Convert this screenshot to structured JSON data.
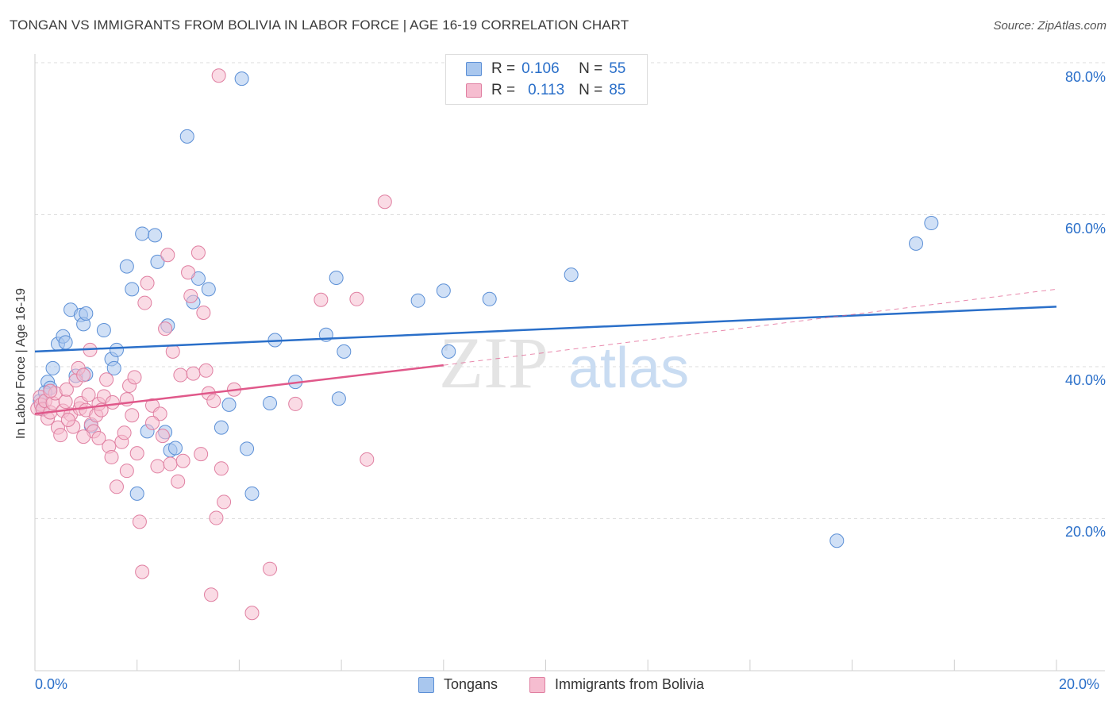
{
  "header": {
    "title": "TONGAN VS IMMIGRANTS FROM BOLIVIA IN LABOR FORCE | AGE 16-19 CORRELATION CHART",
    "source": "Source: ZipAtlas.com"
  },
  "legend": {
    "rows": [
      {
        "r_label": "R =",
        "r_value": "0.106",
        "n_label": "N =",
        "n_value": "55"
      },
      {
        "r_label": "R =",
        "r_value": "0.113",
        "n_label": "N =",
        "n_value": "85"
      }
    ]
  },
  "watermark": {
    "zip": "ZIP",
    "atlas": "atlas"
  },
  "colors": {
    "tongans_fill": "#a9c7ee",
    "tongans_stroke": "#5b8fd6",
    "tongans_line": "#2a6fc9",
    "bolivia_fill": "#f6bdd0",
    "bolivia_stroke": "#e07fa1",
    "bolivia_line": "#e0588a",
    "axis_text": "#2a6fc9",
    "grid": "#dddddd"
  },
  "chart_data": {
    "type": "scatter",
    "title": "TONGAN VS IMMIGRANTS FROM BOLIVIA IN LABOR FORCE | AGE 16-19 CORRELATION CHART",
    "xlabel": "",
    "ylabel": "In Labor Force | Age 16-19",
    "xlim": [
      0,
      20
    ],
    "ylim": [
      0,
      80
    ],
    "x_tick_labels": [
      "0.0%",
      "20.0%"
    ],
    "y_ticks": [
      20,
      40,
      60,
      80
    ],
    "y_tick_labels": [
      "20.0%",
      "40.0%",
      "60.0%",
      "80.0%"
    ],
    "grid": true,
    "legend_position": "bottom",
    "series": [
      {
        "name": "Tongans",
        "points": [
          [
            0.1,
            35.5
          ],
          [
            0.15,
            34.5
          ],
          [
            0.25,
            38
          ],
          [
            0.3,
            37.2
          ],
          [
            0.35,
            39.8
          ],
          [
            0.45,
            43
          ],
          [
            0.55,
            44
          ],
          [
            0.6,
            43.2
          ],
          [
            0.7,
            47.5
          ],
          [
            0.8,
            38.8
          ],
          [
            0.9,
            46.8
          ],
          [
            0.95,
            45.6
          ],
          [
            1.0,
            47
          ],
          [
            1.1,
            32.2
          ],
          [
            1.35,
            44.8
          ],
          [
            1.5,
            41
          ],
          [
            1.6,
            42.2
          ],
          [
            1.8,
            53.2
          ],
          [
            1.9,
            50.2
          ],
          [
            2.0,
            23.3
          ],
          [
            2.1,
            57.5
          ],
          [
            2.2,
            31.5
          ],
          [
            2.35,
            57.3
          ],
          [
            2.4,
            53.8
          ],
          [
            2.55,
            31.4
          ],
          [
            2.6,
            45.4
          ],
          [
            2.65,
            29
          ],
          [
            2.75,
            29.3
          ],
          [
            2.98,
            70.3
          ],
          [
            3.1,
            48.5
          ],
          [
            3.2,
            51.6
          ],
          [
            3.4,
            50.2
          ],
          [
            3.65,
            32
          ],
          [
            3.8,
            35
          ],
          [
            4.05,
            77.9
          ],
          [
            4.15,
            29.2
          ],
          [
            4.25,
            23.3
          ],
          [
            4.6,
            35.2
          ],
          [
            4.7,
            43.5
          ],
          [
            5.1,
            38
          ],
          [
            5.7,
            44.2
          ],
          [
            5.9,
            51.7
          ],
          [
            5.95,
            35.8
          ],
          [
            6.05,
            42
          ],
          [
            7.5,
            48.7
          ],
          [
            8.0,
            50
          ],
          [
            8.1,
            42
          ],
          [
            8.9,
            48.9
          ],
          [
            10.5,
            52.1
          ],
          [
            15.7,
            17.1
          ],
          [
            17.25,
            56.2
          ],
          [
            17.55,
            58.9
          ],
          [
            1.55,
            39.8
          ],
          [
            0.2,
            36.6
          ],
          [
            1.0,
            39
          ]
        ]
      },
      {
        "name": "Immigrants from Bolivia",
        "points": [
          [
            0.05,
            34.5
          ],
          [
            0.1,
            36
          ],
          [
            0.12,
            35
          ],
          [
            0.15,
            34.4
          ],
          [
            0.2,
            35.5
          ],
          [
            0.25,
            33.2
          ],
          [
            0.3,
            34
          ],
          [
            0.35,
            35.2
          ],
          [
            0.4,
            36.5
          ],
          [
            0.45,
            32
          ],
          [
            0.5,
            31
          ],
          [
            0.55,
            34.2
          ],
          [
            0.6,
            35.4
          ],
          [
            0.62,
            37
          ],
          [
            0.7,
            33.7
          ],
          [
            0.75,
            32.1
          ],
          [
            0.8,
            38.2
          ],
          [
            0.85,
            39.8
          ],
          [
            0.88,
            34.5
          ],
          [
            0.9,
            35.2
          ],
          [
            0.95,
            38.9
          ],
          [
            1.0,
            34.3
          ],
          [
            1.05,
            36.3
          ],
          [
            1.08,
            42.2
          ],
          [
            1.1,
            32.4
          ],
          [
            1.15,
            31.5
          ],
          [
            1.2,
            33.6
          ],
          [
            1.25,
            35.1
          ],
          [
            1.3,
            34.3
          ],
          [
            1.35,
            36.1
          ],
          [
            1.4,
            38.3
          ],
          [
            1.45,
            29.5
          ],
          [
            1.5,
            28.1
          ],
          [
            1.52,
            35.3
          ],
          [
            1.6,
            24.2
          ],
          [
            1.7,
            30.1
          ],
          [
            1.75,
            31.3
          ],
          [
            1.8,
            35.7
          ],
          [
            1.85,
            37.5
          ],
          [
            1.9,
            33.6
          ],
          [
            1.95,
            38.6
          ],
          [
            2.0,
            28.6
          ],
          [
            2.05,
            19.6
          ],
          [
            2.1,
            13
          ],
          [
            2.15,
            48.4
          ],
          [
            2.2,
            51
          ],
          [
            2.3,
            34.9
          ],
          [
            2.4,
            26.9
          ],
          [
            2.45,
            33.8
          ],
          [
            2.5,
            30.9
          ],
          [
            2.55,
            45
          ],
          [
            2.6,
            54.7
          ],
          [
            2.65,
            27.2
          ],
          [
            2.7,
            42
          ],
          [
            2.8,
            24.9
          ],
          [
            2.85,
            38.9
          ],
          [
            2.9,
            27.6
          ],
          [
            3.0,
            52.4
          ],
          [
            3.05,
            49.3
          ],
          [
            3.1,
            39.1
          ],
          [
            3.2,
            55
          ],
          [
            3.25,
            28.5
          ],
          [
            3.3,
            47.1
          ],
          [
            3.35,
            39.5
          ],
          [
            3.4,
            36.5
          ],
          [
            3.45,
            10
          ],
          [
            3.5,
            35.5
          ],
          [
            3.55,
            20.1
          ],
          [
            3.6,
            78.3
          ],
          [
            3.65,
            26.6
          ],
          [
            3.7,
            22.2
          ],
          [
            3.9,
            37
          ],
          [
            4.25,
            7.6
          ],
          [
            4.6,
            13.4
          ],
          [
            5.1,
            35.1
          ],
          [
            5.6,
            48.8
          ],
          [
            6.3,
            48.9
          ],
          [
            6.5,
            27.8
          ],
          [
            6.85,
            61.7
          ],
          [
            1.8,
            26.3
          ],
          [
            0.3,
            36.8
          ],
          [
            0.65,
            33
          ],
          [
            1.25,
            30.6
          ],
          [
            2.3,
            32.6
          ],
          [
            0.95,
            30.8
          ]
        ]
      }
    ],
    "trendlines": [
      {
        "series": "Tongans",
        "x": [
          0,
          20
        ],
        "y": [
          42.0,
          47.9
        ],
        "style": "solid"
      },
      {
        "series": "Immigrants from Bolivia",
        "x": [
          0,
          8
        ],
        "y": [
          33.8,
          40.2
        ],
        "style": "solid"
      },
      {
        "series": "Immigrants from Bolivia",
        "x": [
          8,
          20
        ],
        "y": [
          40.2,
          50.2
        ],
        "style": "dashed"
      }
    ]
  },
  "bottom_legend": {
    "items": [
      {
        "label": "Tongans"
      },
      {
        "label": "Immigrants from Bolivia"
      }
    ]
  }
}
